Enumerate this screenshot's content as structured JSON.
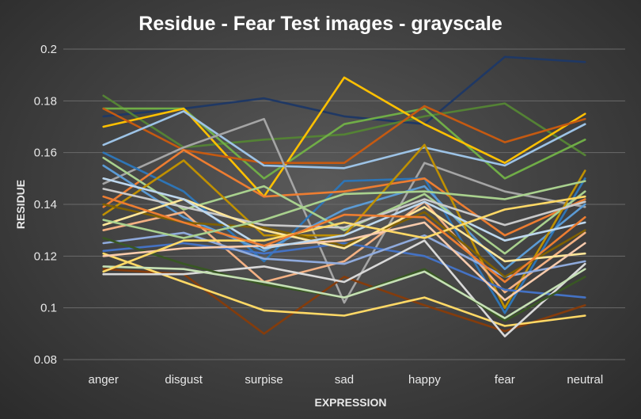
{
  "chart_data": {
    "type": "line",
    "title": "Residue - Fear Test images - grayscale",
    "xlabel": "EXPRESSION",
    "ylabel": "RESIDUE",
    "categories": [
      "anger",
      "disgust",
      "surpise",
      "sad",
      "happy",
      "fear",
      "neutral"
    ],
    "ylim": [
      0.08,
      0.2
    ],
    "yticks": [
      "0.08",
      "0.1",
      "0.12",
      "0.14",
      "0.16",
      "0.18",
      "0.2"
    ],
    "grid": true,
    "legend": "none",
    "series": [
      {
        "color": "#1f3864",
        "values": [
          0.174,
          0.177,
          0.181,
          0.174,
          0.171,
          0.197,
          0.195
        ]
      },
      {
        "color": "#548235",
        "values": [
          0.182,
          0.162,
          0.165,
          0.167,
          0.174,
          0.179,
          0.159
        ]
      },
      {
        "color": "#70ad47",
        "values": [
          0.177,
          0.177,
          0.15,
          0.171,
          0.177,
          0.15,
          0.165
        ]
      },
      {
        "color": "#ffc000",
        "values": [
          0.17,
          0.177,
          0.143,
          0.189,
          0.171,
          0.156,
          0.175
        ]
      },
      {
        "color": "#c55a11",
        "values": [
          0.177,
          0.161,
          0.156,
          0.156,
          0.178,
          0.164,
          0.173
        ]
      },
      {
        "color": "#9dc3e6",
        "values": [
          0.163,
          0.176,
          0.155,
          0.154,
          0.162,
          0.155,
          0.171
        ]
      },
      {
        "color": "#a5a5a5",
        "values": [
          0.148,
          0.162,
          0.173,
          0.102,
          0.156,
          0.145,
          0.139
        ]
      },
      {
        "color": "#2e75b6",
        "values": [
          0.16,
          0.145,
          0.118,
          0.149,
          0.15,
          0.098,
          0.15
        ]
      },
      {
        "color": "#ed7d31",
        "values": [
          0.139,
          0.161,
          0.143,
          0.145,
          0.15,
          0.128,
          0.142
        ]
      },
      {
        "color": "#5b9bd5",
        "values": [
          0.155,
          0.135,
          0.122,
          0.138,
          0.147,
          0.115,
          0.14
        ]
      },
      {
        "color": "#a9d18e",
        "values": [
          0.158,
          0.138,
          0.147,
          0.13,
          0.144,
          0.121,
          0.145
        ]
      },
      {
        "color": "#bf9000",
        "values": [
          0.136,
          0.157,
          0.128,
          0.128,
          0.163,
          0.1,
          0.153
        ]
      },
      {
        "color": "#843c0c",
        "values": [
          0.115,
          0.113,
          0.09,
          0.112,
          0.101,
          0.091,
          0.101
        ]
      },
      {
        "color": "#ffd966",
        "values": [
          0.121,
          0.11,
          0.099,
          0.097,
          0.104,
          0.093,
          0.097
        ]
      },
      {
        "color": "#f4b183",
        "values": [
          0.13,
          0.137,
          0.11,
          0.118,
          0.141,
          0.106,
          0.129
        ]
      },
      {
        "color": "#4472c4",
        "values": [
          0.122,
          0.125,
          0.121,
          0.125,
          0.12,
          0.107,
          0.104
        ]
      },
      {
        "color": "#8faadc",
        "values": [
          0.125,
          0.129,
          0.119,
          0.117,
          0.128,
          0.112,
          0.118
        ]
      },
      {
        "color": "#d9d9d9",
        "values": [
          0.113,
          0.113,
          0.116,
          0.11,
          0.126,
          0.089,
          0.117
        ]
      },
      {
        "color": "#c9c9c9",
        "values": [
          0.146,
          0.139,
          0.132,
          0.131,
          0.142,
          0.132,
          0.141
        ]
      },
      {
        "color": "#7f6000",
        "values": [
          0.14,
          0.133,
          0.131,
          0.124,
          0.137,
          0.112,
          0.13
        ]
      },
      {
        "color": "#ffe699",
        "values": [
          0.132,
          0.142,
          0.13,
          0.123,
          0.139,
          0.118,
          0.121
        ]
      },
      {
        "color": "#385723",
        "values": [
          0.127,
          0.117,
          0.109,
          0.104,
          0.115,
          0.095,
          0.112
        ]
      },
      {
        "color": "#c5e0b4",
        "values": [
          0.116,
          0.115,
          0.11,
          0.104,
          0.114,
          0.096,
          0.115
        ]
      },
      {
        "color": "#f8cbad",
        "values": [
          0.12,
          0.123,
          0.124,
          0.126,
          0.133,
          0.103,
          0.125
        ]
      },
      {
        "color": "#bdd7ee",
        "values": [
          0.15,
          0.142,
          0.123,
          0.128,
          0.141,
          0.126,
          0.133
        ]
      },
      {
        "color": "#ffd966",
        "values": [
          0.114,
          0.126,
          0.126,
          0.133,
          0.127,
          0.138,
          0.143
        ]
      },
      {
        "color": "#ed7d31",
        "values": [
          0.143,
          0.133,
          0.124,
          0.136,
          0.135,
          0.11,
          0.135
        ]
      },
      {
        "color": "#a9d18e",
        "values": [
          0.134,
          0.127,
          0.134,
          0.144,
          0.145,
          0.142,
          0.149
        ]
      }
    ]
  }
}
